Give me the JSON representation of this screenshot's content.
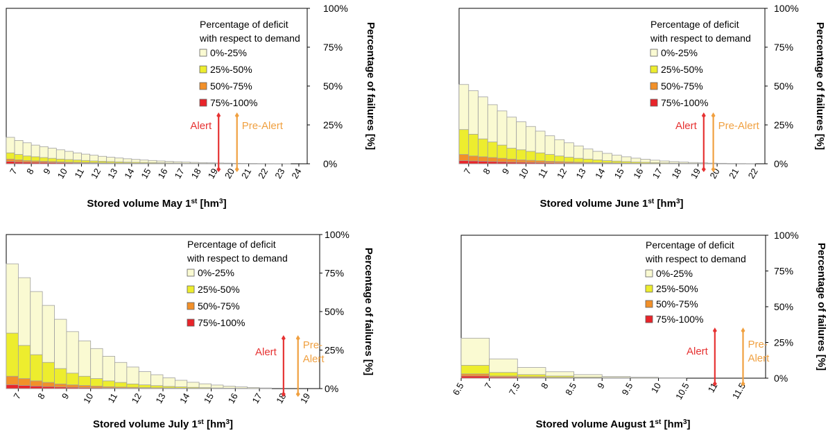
{
  "legend_title": [
    "Percentage of deficit",
    "with respect to demand"
  ],
  "legend_items": [
    "0%-25%",
    "25%-50%",
    "50%-75%",
    "75%-100%"
  ],
  "colors": {
    "c1": "#fafad2",
    "c2": "#eded2e",
    "c3": "#f29029",
    "c4": "#e8242a",
    "alert": "#e63232",
    "prealert": "#f0a040",
    "edge": "#a0a0a0"
  },
  "y_ticks": [
    "0%",
    "25%",
    "50%",
    "75%",
    "100%"
  ],
  "y_label": "Percentage of failures [%]",
  "chart_data": [
    {
      "type": "bar",
      "xlabel": {
        "pre": "Stored volume May 1",
        "sup": "st",
        "post": " [hm",
        "sup2": "3",
        "post2": "]"
      },
      "ylim": [
        0,
        100
      ],
      "x_ticks": [
        "7",
        "8",
        "9",
        "10",
        "11",
        "12",
        "13",
        "14",
        "15",
        "16",
        "17",
        "18",
        "19",
        "20",
        "21",
        "22",
        "23",
        "24"
      ],
      "alert": {
        "label": "Alert",
        "x": 19.2
      },
      "prealert": {
        "label": "Pre-Alert",
        "x": 20.3
      },
      "bars": [
        {
          "x0": 6.5,
          "x1": 7,
          "t": [
            17,
            7,
            3,
            1.5
          ]
        },
        {
          "x0": 7,
          "x1": 7.5,
          "t": [
            15,
            6,
            2.5,
            1.2
          ]
        },
        {
          "x0": 7.5,
          "x1": 8,
          "t": [
            13.5,
            5,
            2,
            1
          ]
        },
        {
          "x0": 8,
          "x1": 8.5,
          "t": [
            12,
            4.5,
            1.8,
            0.9
          ]
        },
        {
          "x0": 8.5,
          "x1": 9,
          "t": [
            11,
            4,
            1.6,
            0.8
          ]
        },
        {
          "x0": 9,
          "x1": 9.5,
          "t": [
            10,
            3.5,
            1.4,
            0.7
          ]
        },
        {
          "x0": 9.5,
          "x1": 10,
          "t": [
            9,
            3,
            1.2,
            0.6
          ]
        },
        {
          "x0": 10,
          "x1": 10.5,
          "t": [
            8,
            2.7,
            1,
            0.5
          ]
        },
        {
          "x0": 10.5,
          "x1": 11,
          "t": [
            7,
            2.4,
            0.9,
            0.4
          ]
        },
        {
          "x0": 11,
          "x1": 11.5,
          "t": [
            6.2,
            2.1,
            0.8,
            0.4
          ]
        },
        {
          "x0": 11.5,
          "x1": 12,
          "t": [
            5.5,
            1.8,
            0.7,
            0.3
          ]
        },
        {
          "x0": 12,
          "x1": 12.5,
          "t": [
            4.8,
            1.6,
            0.6,
            0.3
          ]
        },
        {
          "x0": 12.5,
          "x1": 13,
          "t": [
            4.2,
            1.4,
            0.5,
            0.2
          ]
        },
        {
          "x0": 13,
          "x1": 13.5,
          "t": [
            3.7,
            1.2,
            0.4,
            0.2
          ]
        },
        {
          "x0": 13.5,
          "x1": 14,
          "t": [
            3.2,
            1,
            0.4,
            0.2
          ]
        },
        {
          "x0": 14,
          "x1": 14.5,
          "t": [
            2.8,
            0.9,
            0.3,
            0.1
          ]
        },
        {
          "x0": 14.5,
          "x1": 15,
          "t": [
            2.4,
            0.8,
            0.3,
            0.1
          ]
        },
        {
          "x0": 15,
          "x1": 15.5,
          "t": [
            2.1,
            0.7,
            0.2,
            0.1
          ]
        },
        {
          "x0": 15.5,
          "x1": 16,
          "t": [
            1.8,
            0.6,
            0.2,
            0.1
          ]
        },
        {
          "x0": 16,
          "x1": 16.5,
          "t": [
            1.5,
            0.5,
            0.2,
            0.1
          ]
        },
        {
          "x0": 16.5,
          "x1": 17,
          "t": [
            1.3,
            0.4,
            0.1,
            0.05
          ]
        },
        {
          "x0": 17,
          "x1": 17.5,
          "t": [
            1.1,
            0.3,
            0.1,
            0.05
          ]
        },
        {
          "x0": 17.5,
          "x1": 18,
          "t": [
            0.9,
            0.3,
            0.1,
            0.05
          ]
        },
        {
          "x0": 18,
          "x1": 18.5,
          "t": [
            0.7,
            0.2,
            0.05,
            0
          ]
        },
        {
          "x0": 18.5,
          "x1": 19,
          "t": [
            0.6,
            0.2,
            0.05,
            0
          ]
        },
        {
          "x0": 19,
          "x1": 19.5,
          "t": [
            0.5,
            0.1,
            0,
            0
          ]
        },
        {
          "x0": 19.5,
          "x1": 20,
          "t": [
            0.4,
            0.1,
            0,
            0
          ]
        },
        {
          "x0": 20,
          "x1": 20.5,
          "t": [
            0.3,
            0.1,
            0,
            0
          ]
        },
        {
          "x0": 20.5,
          "x1": 21,
          "t": [
            0.25,
            0.05,
            0,
            0
          ]
        },
        {
          "x0": 21,
          "x1": 21.5,
          "t": [
            0.2,
            0,
            0,
            0
          ]
        },
        {
          "x0": 21.5,
          "x1": 22,
          "t": [
            0.15,
            0,
            0,
            0
          ]
        },
        {
          "x0": 22,
          "x1": 22.5,
          "t": [
            0.1,
            0,
            0,
            0
          ]
        },
        {
          "x0": 22.5,
          "x1": 23,
          "t": [
            0.08,
            0,
            0,
            0
          ]
        },
        {
          "x0": 23,
          "x1": 23.5,
          "t": [
            0.05,
            0,
            0,
            0
          ]
        }
      ]
    },
    {
      "type": "bar",
      "xlabel": {
        "pre": "Stored volume June 1",
        "sup": "st",
        "post": " [hm",
        "sup2": "3",
        "post2": "]"
      },
      "ylim": [
        0,
        100
      ],
      "x_ticks": [
        "7",
        "8",
        "9",
        "10",
        "11",
        "12",
        "13",
        "14",
        "15",
        "16",
        "17",
        "18",
        "19",
        "20",
        "21",
        "22"
      ],
      "alert": {
        "label": "Alert",
        "x": 19.3
      },
      "prealert": {
        "label": "Pre-Alert",
        "x": 19.8
      },
      "bars": [
        {
          "x0": 6.5,
          "x1": 7,
          "t": [
            51,
            22,
            6,
            2
          ]
        },
        {
          "x0": 7,
          "x1": 7.5,
          "t": [
            47,
            19,
            5,
            1.8
          ]
        },
        {
          "x0": 7.5,
          "x1": 8,
          "t": [
            43,
            16,
            4.5,
            1.6
          ]
        },
        {
          "x0": 8,
          "x1": 8.5,
          "t": [
            38,
            14,
            4,
            1.4
          ]
        },
        {
          "x0": 8.5,
          "x1": 9,
          "t": [
            34,
            12,
            3.5,
            1.2
          ]
        },
        {
          "x0": 9,
          "x1": 9.5,
          "t": [
            30,
            10,
            3,
            1
          ]
        },
        {
          "x0": 9.5,
          "x1": 10,
          "t": [
            27,
            9,
            2.5,
            0.9
          ]
        },
        {
          "x0": 10,
          "x1": 10.5,
          "t": [
            24,
            8,
            2.2,
            0.8
          ]
        },
        {
          "x0": 10.5,
          "x1": 11,
          "t": [
            21,
            7,
            1.9,
            0.7
          ]
        },
        {
          "x0": 11,
          "x1": 11.5,
          "t": [
            18,
            6,
            1.6,
            0.6
          ]
        },
        {
          "x0": 11.5,
          "x1": 12,
          "t": [
            15.5,
            5,
            1.4,
            0.5
          ]
        },
        {
          "x0": 12,
          "x1": 12.5,
          "t": [
            13.5,
            4.2,
            1.2,
            0.4
          ]
        },
        {
          "x0": 12.5,
          "x1": 13,
          "t": [
            11.5,
            3.5,
            1,
            0.4
          ]
        },
        {
          "x0": 13,
          "x1": 13.5,
          "t": [
            9.5,
            3,
            0.8,
            0.3
          ]
        },
        {
          "x0": 13.5,
          "x1": 14,
          "t": [
            8,
            2.5,
            0.7,
            0.3
          ]
        },
        {
          "x0": 14,
          "x1": 14.5,
          "t": [
            6.7,
            2,
            0.6,
            0.2
          ]
        },
        {
          "x0": 14.5,
          "x1": 15,
          "t": [
            5.5,
            1.7,
            0.5,
            0.2
          ]
        },
        {
          "x0": 15,
          "x1": 15.5,
          "t": [
            4.5,
            1.4,
            0.4,
            0.1
          ]
        },
        {
          "x0": 15.5,
          "x1": 16,
          "t": [
            3.6,
            1.1,
            0.3,
            0.1
          ]
        },
        {
          "x0": 16,
          "x1": 16.5,
          "t": [
            2.9,
            0.9,
            0.2,
            0.1
          ]
        },
        {
          "x0": 16.5,
          "x1": 17,
          "t": [
            2.3,
            0.7,
            0.2,
            0.05
          ]
        },
        {
          "x0": 17,
          "x1": 17.5,
          "t": [
            1.8,
            0.5,
            0.1,
            0.05
          ]
        },
        {
          "x0": 17.5,
          "x1": 18,
          "t": [
            1.4,
            0.4,
            0.1,
            0
          ]
        },
        {
          "x0": 18,
          "x1": 18.5,
          "t": [
            1.1,
            0.3,
            0.1,
            0
          ]
        },
        {
          "x0": 18.5,
          "x1": 19,
          "t": [
            0.8,
            0.2,
            0.05,
            0
          ]
        },
        {
          "x0": 19,
          "x1": 19.5,
          "t": [
            0.6,
            0.15,
            0,
            0
          ]
        },
        {
          "x0": 19.5,
          "x1": 20,
          "t": [
            0.4,
            0.1,
            0,
            0
          ]
        },
        {
          "x0": 20,
          "x1": 20.5,
          "t": [
            0.3,
            0.05,
            0,
            0
          ]
        },
        {
          "x0": 20.5,
          "x1": 21,
          "t": [
            0.2,
            0,
            0,
            0
          ]
        },
        {
          "x0": 21,
          "x1": 21.5,
          "t": [
            0.15,
            0,
            0,
            0
          ]
        },
        {
          "x0": 21.5,
          "x1": 22,
          "t": [
            0.1,
            0,
            0,
            0
          ]
        }
      ]
    },
    {
      "type": "bar",
      "xlabel": {
        "pre": "Stored volume July 1",
        "sup": "st",
        "post": " [hm",
        "sup2": "3",
        "post2": "]"
      },
      "ylim": [
        0,
        100
      ],
      "x_ticks": [
        "7",
        "8",
        "9",
        "10",
        "11",
        "12",
        "13",
        "14",
        "15",
        "16",
        "17",
        "18",
        "19"
      ],
      "alert": {
        "label": "Alert",
        "x": 18.0
      },
      "prealert": {
        "label": "Pre-\nAlert",
        "x": 18.6
      },
      "bars": [
        {
          "x0": 6.5,
          "x1": 7,
          "t": [
            81,
            36,
            8,
            2.5
          ]
        },
        {
          "x0": 7,
          "x1": 7.5,
          "t": [
            72,
            28,
            6.5,
            2
          ]
        },
        {
          "x0": 7.5,
          "x1": 8,
          "t": [
            63,
            22,
            5,
            1.6
          ]
        },
        {
          "x0": 8,
          "x1": 8.5,
          "t": [
            54,
            17,
            4,
            1.3
          ]
        },
        {
          "x0": 8.5,
          "x1": 9,
          "t": [
            45,
            13,
            3,
            1
          ]
        },
        {
          "x0": 9,
          "x1": 9.5,
          "t": [
            37,
            10,
            2.4,
            0.8
          ]
        },
        {
          "x0": 9.5,
          "x1": 10,
          "t": [
            31,
            8,
            2,
            0.6
          ]
        },
        {
          "x0": 10,
          "x1": 10.5,
          "t": [
            26,
            6.5,
            1.6,
            0.5
          ]
        },
        {
          "x0": 10.5,
          "x1": 11,
          "t": [
            21,
            5,
            1.2,
            0.4
          ]
        },
        {
          "x0": 11,
          "x1": 11.5,
          "t": [
            17,
            4,
            1,
            0.3
          ]
        },
        {
          "x0": 11.5,
          "x1": 12,
          "t": [
            14,
            3,
            0.8,
            0.2
          ]
        },
        {
          "x0": 12,
          "x1": 12.5,
          "t": [
            11,
            2.4,
            0.6,
            0.2
          ]
        },
        {
          "x0": 12.5,
          "x1": 13,
          "t": [
            9,
            1.9,
            0.5,
            0.1
          ]
        },
        {
          "x0": 13,
          "x1": 13.5,
          "t": [
            7,
            1.4,
            0.4,
            0.1
          ]
        },
        {
          "x0": 13.5,
          "x1": 14,
          "t": [
            5.4,
            1.1,
            0.3,
            0.1
          ]
        },
        {
          "x0": 14,
          "x1": 14.5,
          "t": [
            4.1,
            0.8,
            0.2,
            0.05
          ]
        },
        {
          "x0": 14.5,
          "x1": 15,
          "t": [
            3.1,
            0.6,
            0.15,
            0
          ]
        },
        {
          "x0": 15,
          "x1": 15.5,
          "t": [
            2.3,
            0.4,
            0.1,
            0
          ]
        },
        {
          "x0": 15.5,
          "x1": 16,
          "t": [
            1.6,
            0.3,
            0.05,
            0
          ]
        },
        {
          "x0": 16,
          "x1": 16.5,
          "t": [
            1.1,
            0.2,
            0,
            0
          ]
        },
        {
          "x0": 16.5,
          "x1": 17,
          "t": [
            0.7,
            0.1,
            0,
            0
          ]
        },
        {
          "x0": 17,
          "x1": 17.5,
          "t": [
            0.4,
            0.05,
            0,
            0
          ]
        }
      ]
    },
    {
      "type": "bar",
      "xlabel": {
        "pre": "Stored volume August 1",
        "sup": "st",
        "post": " [hm",
        "sup2": "3",
        "post2": "]"
      },
      "ylim": [
        0,
        100
      ],
      "x_ticks": [
        "6.5",
        "7",
        "7.5",
        "8",
        "8.5",
        "9",
        "9.5",
        "10",
        "10.5",
        "11",
        "11.5"
      ],
      "alert": {
        "label": "Alert",
        "x": 11.0
      },
      "prealert": {
        "label": "Pre-\nAlert",
        "x": 11.5
      },
      "bars": [
        {
          "x0": 6.5,
          "x1": 7,
          "t": [
            28,
            9,
            3,
            1.5
          ]
        },
        {
          "x0": 7,
          "x1": 7.5,
          "t": [
            13.5,
            4,
            1.5,
            0.7
          ]
        },
        {
          "x0": 7.5,
          "x1": 8,
          "t": [
            7.5,
            2.5,
            1,
            0.4
          ]
        },
        {
          "x0": 8,
          "x1": 8.5,
          "t": [
            4.5,
            1.5,
            0.6,
            0.2
          ]
        },
        {
          "x0": 8.5,
          "x1": 9,
          "t": [
            2.5,
            0.8,
            0.3,
            0.1
          ]
        },
        {
          "x0": 9,
          "x1": 9.5,
          "t": [
            1.2,
            0.4,
            0.1,
            0.05
          ]
        },
        {
          "x0": 9.5,
          "x1": 10,
          "t": [
            0.7,
            0.2,
            0.05,
            0
          ]
        },
        {
          "x0": 10,
          "x1": 10.5,
          "t": [
            0.3,
            0.1,
            0,
            0
          ]
        }
      ]
    }
  ]
}
